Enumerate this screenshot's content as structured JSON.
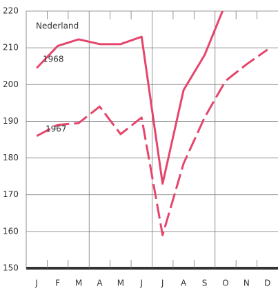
{
  "chart_data": {
    "type": "line",
    "annotation": "Nederland",
    "categories": [
      "J",
      "F",
      "M",
      "A",
      "M",
      "J",
      "J",
      "A",
      "S",
      "O",
      "N",
      "D"
    ],
    "series": [
      {
        "name": "1968",
        "color": "#e6456c",
        "dash": false,
        "values": [
          204.5,
          210.5,
          212.3,
          211,
          211,
          213,
          173,
          198.5,
          208,
          222,
          null,
          null
        ]
      },
      {
        "name": "1967",
        "color": "#e6456c",
        "dash": true,
        "values": [
          186,
          189,
          189.5,
          194,
          186.5,
          191,
          159,
          178.5,
          191,
          201,
          205.5,
          209.5
        ]
      }
    ],
    "ylim": [
      150,
      220
    ],
    "yticks": [
      150,
      160,
      170,
      180,
      190,
      200,
      210,
      220
    ],
    "grid": true
  }
}
